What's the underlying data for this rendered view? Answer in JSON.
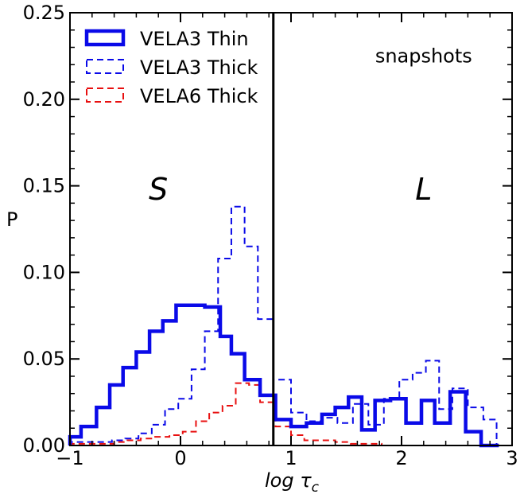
{
  "chart_data": {
    "type": "histogram",
    "xlabel_main": "log τ",
    "xlabel_sub": "c",
    "ylabel": "P",
    "xlim": [
      -1,
      3
    ],
    "ylim": [
      0,
      0.25
    ],
    "x_ticks": [
      -1,
      0,
      1,
      2,
      3
    ],
    "x_tick_labels": [
      "−1",
      "0",
      "1",
      "2",
      "3"
    ],
    "y_ticks": [
      0.0,
      0.05,
      0.1,
      0.15,
      0.2,
      0.25
    ],
    "y_tick_labels": [
      "0.00",
      "0.05",
      "0.10",
      "0.15",
      "0.20",
      "0.25"
    ],
    "grid": false,
    "legend_position": "top-left",
    "vertical_line_x": 0.84,
    "annotations": [
      {
        "text": "S",
        "x": -0.2,
        "y": 0.148,
        "italic": true
      },
      {
        "text": "L",
        "x": 2.2,
        "y": 0.148,
        "italic": true
      },
      {
        "text": "snapshots",
        "x": 2.2,
        "y": 0.225,
        "italic": false
      }
    ],
    "series": [
      {
        "name": "VELA3 Thin",
        "style": "solid",
        "color": "#0a0ae8",
        "linewidth": 4.5,
        "legend_swatch": "box",
        "edges": [
          -1.0,
          -0.9,
          -0.76,
          -0.64,
          -0.52,
          -0.4,
          -0.28,
          -0.16,
          -0.04,
          0.08,
          0.22,
          0.36,
          0.46,
          0.58,
          0.72,
          0.86,
          1.0,
          1.14,
          1.28,
          1.4,
          1.52,
          1.64,
          1.76,
          1.9,
          2.04,
          2.18,
          2.3,
          2.44,
          2.58,
          2.72,
          2.88
        ],
        "values": [
          0.005,
          0.011,
          0.022,
          0.035,
          0.045,
          0.054,
          0.066,
          0.072,
          0.081,
          0.081,
          0.08,
          0.063,
          0.053,
          0.038,
          0.029,
          0.015,
          0.011,
          0.013,
          0.018,
          0.022,
          0.028,
          0.009,
          0.026,
          0.027,
          0.013,
          0.026,
          0.013,
          0.031,
          0.008,
          0.0
        ]
      },
      {
        "name": "VELA3 Thick",
        "style": "dashed",
        "color": "#0a0ae8",
        "linewidth": 2,
        "legend_swatch": "box",
        "edges": [
          -1.0,
          -0.86,
          -0.74,
          -0.62,
          -0.5,
          -0.38,
          -0.26,
          -0.14,
          -0.02,
          0.1,
          0.22,
          0.34,
          0.46,
          0.58,
          0.7,
          0.84,
          1.0,
          1.14,
          1.28,
          1.42,
          1.56,
          1.7,
          1.84,
          1.98,
          2.1,
          2.22,
          2.34,
          2.46,
          2.6,
          2.74,
          2.86
        ],
        "values": [
          0.002,
          0.002,
          0.002,
          0.003,
          0.004,
          0.007,
          0.012,
          0.021,
          0.027,
          0.044,
          0.066,
          0.108,
          0.138,
          0.115,
          0.073,
          0.038,
          0.019,
          0.014,
          0.016,
          0.013,
          0.024,
          0.012,
          0.027,
          0.038,
          0.042,
          0.049,
          0.021,
          0.033,
          0.022,
          0.015
        ]
      },
      {
        "name": "VELA6 Thick",
        "style": "dashed",
        "color": "#e81010",
        "linewidth": 2,
        "legend_swatch": "box",
        "edges": [
          -1.0,
          -0.86,
          -0.72,
          -0.6,
          -0.48,
          -0.36,
          -0.24,
          -0.1,
          0.02,
          0.14,
          0.26,
          0.38,
          0.5,
          0.62,
          0.72,
          0.86,
          1.0,
          1.12,
          1.26,
          1.4,
          1.54,
          1.68,
          1.82
        ],
        "values": [
          0.001,
          0.001,
          0.001,
          0.002,
          0.003,
          0.004,
          0.005,
          0.006,
          0.008,
          0.014,
          0.019,
          0.023,
          0.036,
          0.035,
          0.025,
          0.011,
          0.006,
          0.003,
          0.003,
          0.002,
          0.001,
          0.001
        ]
      }
    ]
  }
}
